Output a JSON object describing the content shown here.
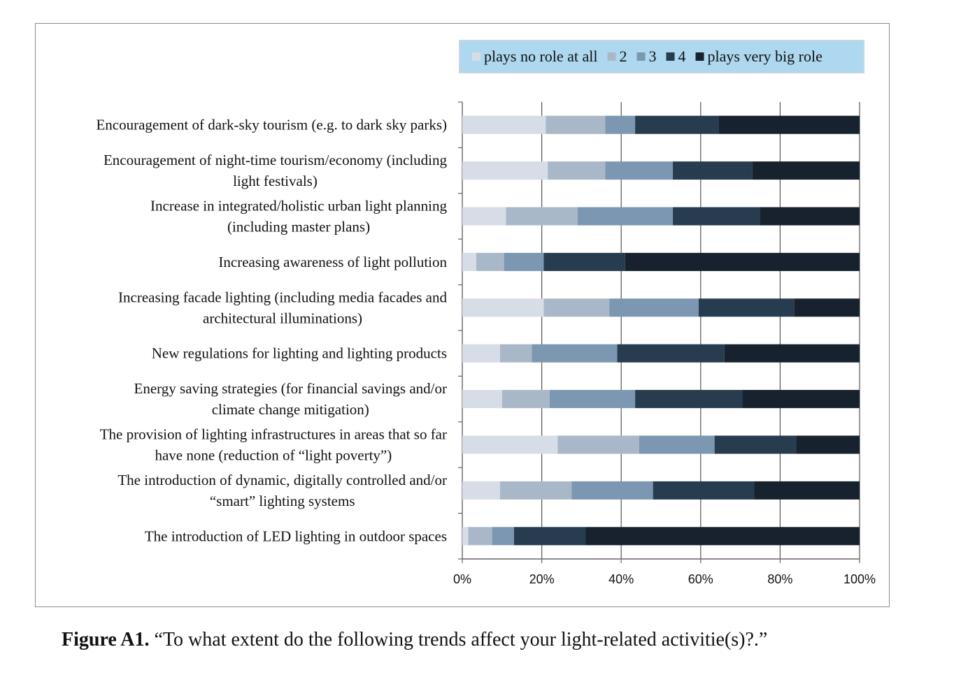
{
  "caption": {
    "label": "Figure A1.",
    "text": "“To what extent do the following trends affect your light-related activitie(s)?.”"
  },
  "colors": {
    "plays no role at all": "#d6dde6",
    "2": "#a9b8c9",
    "3": "#7b97b2",
    "4": "#283c50",
    "plays very big role": "#17222e",
    "legend_bg": "#add8ef",
    "grid": "#555555"
  },
  "chart_data": {
    "type": "bar",
    "orientation": "horizontal",
    "stacked": "percent",
    "xlim": [
      0,
      100
    ],
    "x_ticks": [
      "0%",
      "20%",
      "40%",
      "60%",
      "80%",
      "100%"
    ],
    "grid": true,
    "legend_position": "top",
    "categories": [
      "Encouragement of dark-sky tourism (e.g. to dark sky parks)",
      "Encouragement of night-time tourism/economy (including light festivals)",
      "Increase in integrated/holistic urban light planning (including master plans)",
      "Increasing awareness of light pollution",
      "Increasing facade lighting (including media facades and architectural illuminations)",
      "New regulations for lighting and lighting products",
      "Energy saving strategies (for financial savings and/or climate change mitigation)",
      "The provision of lighting infrastructures in areas that so far have none (reduction of “light poverty”)",
      "The introduction of dynamic, digitally controlled and/or “smart” lighting systems",
      "The introduction of LED lighting in outdoor spaces"
    ],
    "category_lines": [
      [
        "Encouragement of dark-sky tourism (e.g. to dark sky parks)"
      ],
      [
        "Encouragement of night-time tourism/economy (including",
        "light festivals)"
      ],
      [
        "Increase in integrated/holistic urban light planning",
        "(including master plans)"
      ],
      [
        "Increasing awareness of light pollution"
      ],
      [
        "Increasing facade lighting (including media facades and",
        "architectural illuminations)"
      ],
      [
        "New regulations for lighting and lighting products"
      ],
      [
        "Energy saving strategies (for financial savings and/or",
        "climate change mitigation)"
      ],
      [
        "The provision of lighting infrastructures in areas that so far",
        "have none (reduction of “light poverty”)"
      ],
      [
        "The introduction of dynamic, digitally controlled and/or",
        "“smart” lighting systems"
      ],
      [
        "The introduction of LED lighting in outdoor spaces"
      ]
    ],
    "series": [
      {
        "name": "plays no role at all",
        "values": [
          21,
          21.5,
          11,
          3.5,
          20.5,
          9.5,
          10,
          24,
          9.5,
          1.5
        ]
      },
      {
        "name": "2",
        "values": [
          15,
          14.5,
          18,
          7,
          16.5,
          8,
          12,
          20.5,
          18,
          6
        ]
      },
      {
        "name": "3",
        "values": [
          7.5,
          17,
          24,
          10,
          22.5,
          21.5,
          21.5,
          19,
          20.5,
          5.5
        ]
      },
      {
        "name": "4",
        "values": [
          21,
          20,
          22,
          20.5,
          24,
          27,
          27,
          20.5,
          25.5,
          18
        ]
      },
      {
        "name": "plays very big role",
        "values": [
          35.5,
          27,
          25,
          59,
          16.5,
          34,
          29.5,
          16,
          26.5,
          69
        ]
      }
    ]
  }
}
